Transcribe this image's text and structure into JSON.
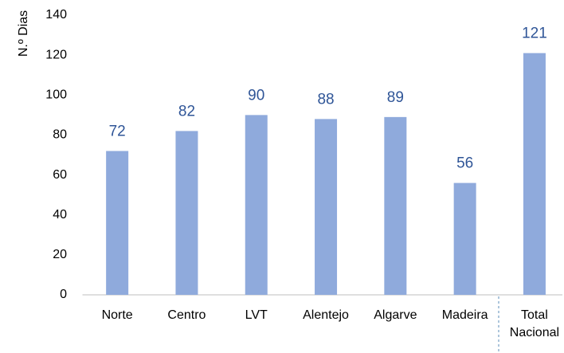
{
  "chart_data": {
    "type": "bar",
    "ylabel": "N.º Dias",
    "categories": [
      "Norte",
      "Centro",
      "LVT",
      "Alentejo",
      "Algarve",
      "Madeira",
      "Total Nacional"
    ],
    "values": [
      72,
      82,
      90,
      88,
      89,
      56,
      121
    ],
    "color": "#8faadc",
    "label_color": "#2f5597",
    "ylim": [
      0,
      140
    ],
    "yticks": [
      0,
      20,
      40,
      60,
      80,
      100,
      120,
      140
    ],
    "grid": false
  }
}
